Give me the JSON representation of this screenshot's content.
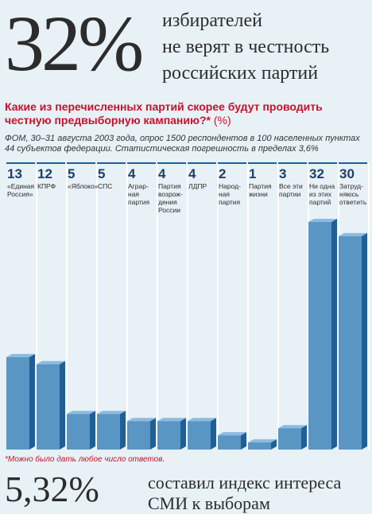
{
  "headline": {
    "percent": "32%",
    "lines": [
      "избирателей",
      "не верят в честность",
      "российских партий"
    ]
  },
  "question": {
    "text": "Какие из перечисленных партий скорее будут проводить честную предвыборную кампанию?*",
    "unit": "(%)"
  },
  "source": {
    "lines": [
      "ФОМ, 30–31 августа 2003 года, опрос 1500 респондентов в 100 населенных пунктах",
      "44 субъектов федерации. Статистическая погрешность в пределах 3,6%"
    ]
  },
  "footnote": "*Можно было дать любое число ответов.",
  "bottom": {
    "percent": "5,32%",
    "lines": [
      "составил индекс интереса",
      "СМИ к выборам"
    ]
  },
  "colors": {
    "bar_front": "#5a96c4",
    "bar_side": "#1f5f96",
    "bar_top": "#8bbbe0",
    "red": "#c8102e",
    "background": "#e7f1f6"
  },
  "chart_data": {
    "type": "bar",
    "categories": [
      [
        "«Единая",
        "Россия»"
      ],
      [
        "КПРФ"
      ],
      [
        "«Яблоко»"
      ],
      [
        "СПС"
      ],
      [
        "Аграр-",
        "ная",
        "партия"
      ],
      [
        "Партия",
        "возрож-",
        "дения",
        "России"
      ],
      [
        "ЛДПР"
      ],
      [
        "Народ-",
        "ная",
        "партия"
      ],
      [
        "Партия",
        "жизни"
      ],
      [
        "Все эти",
        "партии"
      ],
      [
        "Ни одна",
        "из этих",
        "партий"
      ],
      [
        "Затруд-",
        "няюсь",
        "ответить"
      ]
    ],
    "values": [
      13,
      12,
      5,
      5,
      4,
      4,
      4,
      2,
      1,
      3,
      32,
      30
    ],
    "value_labels": [
      "13",
      "12",
      "5",
      "5",
      "4",
      "4",
      "4",
      "2",
      "1",
      "3",
      "32",
      "30"
    ],
    "ylim": [
      0,
      32
    ],
    "grid": false
  }
}
